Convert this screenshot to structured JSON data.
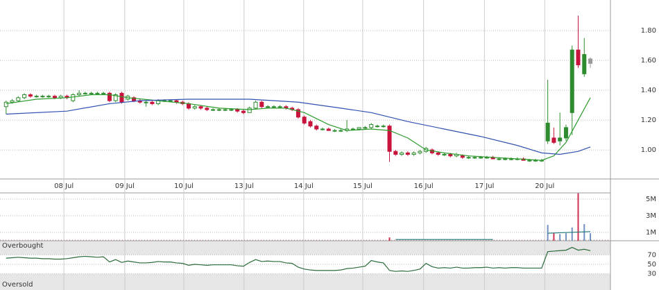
{
  "chart_data": {
    "type": "candlestick",
    "xlim": [
      -1,
      99.3
    ],
    "xticks": [
      {
        "value": 9.5,
        "label": "08 Jul"
      },
      {
        "value": 19.5,
        "label": "09 Jul"
      },
      {
        "value": 29.2,
        "label": "10 Jul"
      },
      {
        "value": 39.1,
        "label": "13 Jul"
      },
      {
        "value": 48.9,
        "label": "14 Jul"
      },
      {
        "value": 58.6,
        "label": "15 Jul"
      },
      {
        "value": 68.6,
        "label": "16 Jul"
      },
      {
        "value": 78.6,
        "label": "17 Jul"
      },
      {
        "value": 88.5,
        "label": "20 Jul"
      }
    ],
    "ylim": [
      0.805,
      2.005
    ],
    "yticks": [
      {
        "value": 1.0,
        "label": "1.00"
      },
      {
        "value": 1.2,
        "label": "1.20"
      },
      {
        "value": 1.4,
        "label": "1.40"
      },
      {
        "value": 1.6,
        "label": "1.60"
      },
      {
        "value": 1.8,
        "label": "1.80"
      }
    ],
    "up_color": "#2e8b2e",
    "down_color": "#c8143c",
    "candles": [
      [
        1.29,
        1.33,
        1.24,
        1.32
      ],
      [
        1.32,
        1.34,
        1.31,
        1.33
      ],
      [
        1.33,
        1.36,
        1.32,
        1.35
      ],
      [
        1.35,
        1.38,
        1.34,
        1.37
      ],
      [
        1.37,
        1.38,
        1.35,
        1.36
      ],
      [
        1.36,
        1.37,
        1.35,
        1.36
      ],
      [
        1.36,
        1.37,
        1.35,
        1.36
      ],
      [
        1.36,
        1.37,
        1.35,
        1.36
      ],
      [
        1.36,
        1.37,
        1.34,
        1.35
      ],
      [
        1.35,
        1.37,
        1.34,
        1.36
      ],
      [
        1.36,
        1.37,
        1.34,
        1.35
      ],
      [
        1.33,
        1.38,
        1.32,
        1.37
      ],
      [
        1.37,
        1.4,
        1.36,
        1.38
      ],
      [
        1.38,
        1.39,
        1.37,
        1.38
      ],
      [
        1.38,
        1.39,
        1.37,
        1.38
      ],
      [
        1.38,
        1.39,
        1.37,
        1.38
      ],
      [
        1.38,
        1.39,
        1.37,
        1.38
      ],
      [
        1.38,
        1.39,
        1.32,
        1.33
      ],
      [
        1.33,
        1.38,
        1.32,
        1.37
      ],
      [
        1.38,
        1.39,
        1.31,
        1.32
      ],
      [
        1.34,
        1.37,
        1.33,
        1.36
      ],
      [
        1.35,
        1.36,
        1.32,
        1.33
      ],
      [
        1.33,
        1.34,
        1.31,
        1.32
      ],
      [
        1.32,
        1.33,
        1.29,
        1.32
      ],
      [
        1.32,
        1.33,
        1.3,
        1.31
      ],
      [
        1.31,
        1.34,
        1.3,
        1.33
      ],
      [
        1.33,
        1.34,
        1.32,
        1.33
      ],
      [
        1.33,
        1.34,
        1.32,
        1.33
      ],
      [
        1.33,
        1.34,
        1.31,
        1.32
      ],
      [
        1.32,
        1.33,
        1.3,
        1.31
      ],
      [
        1.31,
        1.32,
        1.27,
        1.28
      ],
      [
        1.28,
        1.3,
        1.27,
        1.29
      ],
      [
        1.29,
        1.3,
        1.27,
        1.28
      ],
      [
        1.28,
        1.29,
        1.26,
        1.27
      ],
      [
        1.27,
        1.28,
        1.26,
        1.27
      ],
      [
        1.27,
        1.28,
        1.26,
        1.27
      ],
      [
        1.27,
        1.28,
        1.26,
        1.27
      ],
      [
        1.27,
        1.28,
        1.26,
        1.27
      ],
      [
        1.27,
        1.28,
        1.25,
        1.26
      ],
      [
        1.26,
        1.27,
        1.24,
        1.25
      ],
      [
        1.25,
        1.29,
        1.25,
        1.28
      ],
      [
        1.28,
        1.33,
        1.27,
        1.32
      ],
      [
        1.32,
        1.33,
        1.28,
        1.29
      ],
      [
        1.29,
        1.3,
        1.28,
        1.29
      ],
      [
        1.29,
        1.3,
        1.28,
        1.29
      ],
      [
        1.29,
        1.3,
        1.28,
        1.29
      ],
      [
        1.29,
        1.3,
        1.27,
        1.28
      ],
      [
        1.28,
        1.29,
        1.26,
        1.27
      ],
      [
        1.27,
        1.28,
        1.21,
        1.22
      ],
      [
        1.22,
        1.23,
        1.17,
        1.18
      ],
      [
        1.19,
        1.2,
        1.15,
        1.16
      ],
      [
        1.16,
        1.17,
        1.13,
        1.14
      ],
      [
        1.14,
        1.15,
        1.13,
        1.14
      ],
      [
        1.14,
        1.15,
        1.13,
        1.13
      ],
      [
        1.13,
        1.14,
        1.12,
        1.13
      ],
      [
        1.13,
        1.14,
        1.12,
        1.13
      ],
      [
        1.13,
        1.2,
        1.12,
        1.14
      ],
      [
        1.14,
        1.15,
        1.13,
        1.14
      ],
      [
        1.14,
        1.15,
        1.13,
        1.15
      ],
      [
        1.15,
        1.16,
        1.14,
        1.15
      ],
      [
        1.15,
        1.18,
        1.14,
        1.17
      ],
      [
        1.16,
        1.17,
        1.15,
        1.16
      ],
      [
        1.16,
        1.17,
        1.15,
        1.16
      ],
      [
        1.16,
        1.17,
        0.92,
        0.99
      ],
      [
        0.99,
        1.0,
        0.96,
        0.97
      ],
      [
        0.97,
        0.99,
        0.96,
        0.98
      ],
      [
        0.98,
        0.99,
        0.96,
        0.97
      ],
      [
        0.97,
        0.99,
        0.96,
        0.98
      ],
      [
        0.98,
        1.0,
        0.97,
        0.99
      ],
      [
        0.99,
        1.02,
        0.98,
        1.01
      ],
      [
        1.0,
        1.01,
        0.97,
        0.98
      ],
      [
        0.98,
        0.99,
        0.96,
        0.97
      ],
      [
        0.97,
        0.98,
        0.96,
        0.97
      ],
      [
        0.97,
        0.98,
        0.95,
        0.96
      ],
      [
        0.96,
        0.98,
        0.95,
        0.97
      ],
      [
        0.96,
        0.97,
        0.94,
        0.95
      ],
      [
        0.95,
        0.96,
        0.94,
        0.95
      ],
      [
        0.95,
        0.96,
        0.94,
        0.95
      ],
      [
        0.95,
        0.96,
        0.94,
        0.95
      ],
      [
        0.95,
        0.96,
        0.94,
        0.95
      ],
      [
        0.95,
        0.96,
        0.94,
        0.94
      ],
      [
        0.94,
        0.95,
        0.93,
        0.94
      ],
      [
        0.94,
        0.95,
        0.93,
        0.94
      ],
      [
        0.94,
        0.95,
        0.93,
        0.94
      ],
      [
        0.94,
        0.95,
        0.93,
        0.94
      ],
      [
        0.94,
        0.95,
        0.93,
        0.93
      ],
      [
        0.93,
        0.94,
        0.92,
        0.93
      ],
      [
        0.93,
        0.94,
        0.92,
        0.93
      ],
      [
        0.93,
        0.94,
        0.92,
        0.93
      ],
      [
        1.06,
        1.47,
        1.04,
        1.18
      ],
      [
        1.08,
        1.15,
        1.04,
        1.05
      ],
      [
        1.06,
        1.25,
        1.03,
        1.08
      ],
      [
        1.08,
        1.17,
        1.06,
        1.15
      ],
      [
        1.25,
        1.7,
        1.1,
        1.67
      ],
      [
        1.67,
        1.9,
        1.55,
        1.57
      ],
      [
        1.51,
        1.75,
        1.49,
        1.64
      ],
      [
        1.58,
        1.62,
        1.55,
        1.61
      ]
    ],
    "moving_averages": [
      {
        "color": "#2a9a2a",
        "x": [
          0,
          5,
          10,
          14,
          17,
          20,
          25,
          30,
          35,
          40,
          43,
          46,
          49,
          53,
          56,
          60,
          63,
          66,
          69,
          72,
          76,
          80,
          84,
          88,
          90,
          92,
          94,
          96
        ],
        "values": [
          1.31,
          1.34,
          1.35,
          1.37,
          1.37,
          1.35,
          1.33,
          1.31,
          1.28,
          1.27,
          1.28,
          1.28,
          1.25,
          1.17,
          1.13,
          1.14,
          1.13,
          1.08,
          1.0,
          0.98,
          0.96,
          0.95,
          0.94,
          0.93,
          0.96,
          1.05,
          1.2,
          1.35
        ]
      },
      {
        "color": "#3050b0",
        "x": [
          0,
          10,
          17,
          22,
          30,
          40,
          48,
          55,
          60,
          66,
          72,
          78,
          84,
          88,
          91,
          94,
          96
        ],
        "values": [
          1.24,
          1.26,
          1.31,
          1.33,
          1.34,
          1.34,
          1.32,
          1.28,
          1.25,
          1.19,
          1.14,
          1.09,
          1.03,
          0.98,
          0.97,
          0.99,
          1.02
        ]
      }
    ],
    "volume": {
      "ylim": [
        0,
        5580000
      ],
      "yticks": [
        {
          "value": 1000000,
          "label": "1M"
        },
        {
          "value": 3000000,
          "label": "3M"
        },
        {
          "value": 5000000,
          "label": "5M"
        }
      ],
      "up_color": "#7090c0",
      "down_color": "#d03050",
      "values": [
        10000,
        10000,
        10000,
        10000,
        10000,
        10000,
        10000,
        10000,
        10000,
        10000,
        10000,
        10000,
        10000,
        10000,
        10000,
        10000,
        10000,
        10000,
        10000,
        10000,
        10000,
        10000,
        10000,
        10000,
        10000,
        10000,
        10000,
        10000,
        10000,
        10000,
        10000,
        10000,
        10000,
        10000,
        10000,
        10000,
        10000,
        10000,
        10000,
        10000,
        10000,
        10000,
        10000,
        10000,
        10000,
        10000,
        10000,
        10000,
        10000,
        10000,
        10000,
        10000,
        10000,
        10000,
        10000,
        10000,
        10000,
        10000,
        10000,
        10000,
        10000,
        10000,
        10000,
        400000,
        10000,
        10000,
        10000,
        10000,
        10000,
        10000,
        10000,
        10000,
        10000,
        10000,
        10000,
        10000,
        10000,
        10000,
        10000,
        10000,
        10000,
        10000,
        10000,
        10000,
        10000,
        10000,
        10000,
        10000,
        10000,
        1900000,
        900000,
        800000,
        900000,
        1600000,
        5700000,
        2000000,
        900000
      ],
      "ma_color": "#207878",
      "ma_x": [
        64,
        80,
        81,
        89,
        96
      ],
      "ma_values": [
        150000,
        150000,
        null,
        900000,
        1100000
      ]
    },
    "rsi": {
      "ylim": [
        0,
        100
      ],
      "yticks": [
        70,
        50,
        30
      ],
      "color": "#2a6a3a",
      "overbought": "Overbought",
      "oversold": "Oversold",
      "values": [
        63,
        64,
        65,
        64,
        63,
        63,
        62,
        62,
        61,
        61,
        62,
        64,
        66,
        67,
        66,
        65,
        66,
        55,
        60,
        54,
        57,
        55,
        53,
        53,
        54,
        56,
        55,
        55,
        53,
        52,
        48,
        50,
        49,
        48,
        49,
        49,
        49,
        49,
        47,
        46,
        54,
        60,
        56,
        57,
        56,
        56,
        53,
        52,
        44,
        40,
        38,
        37,
        37,
        37,
        37,
        38,
        41,
        42,
        44,
        46,
        58,
        55,
        53,
        37,
        35,
        36,
        35,
        37,
        40,
        52,
        45,
        42,
        43,
        42,
        44,
        42,
        42,
        43,
        43,
        44,
        42,
        43,
        42,
        43,
        43,
        42,
        42,
        42,
        42,
        77,
        78,
        79,
        80,
        86,
        80,
        82,
        79
      ]
    }
  }
}
